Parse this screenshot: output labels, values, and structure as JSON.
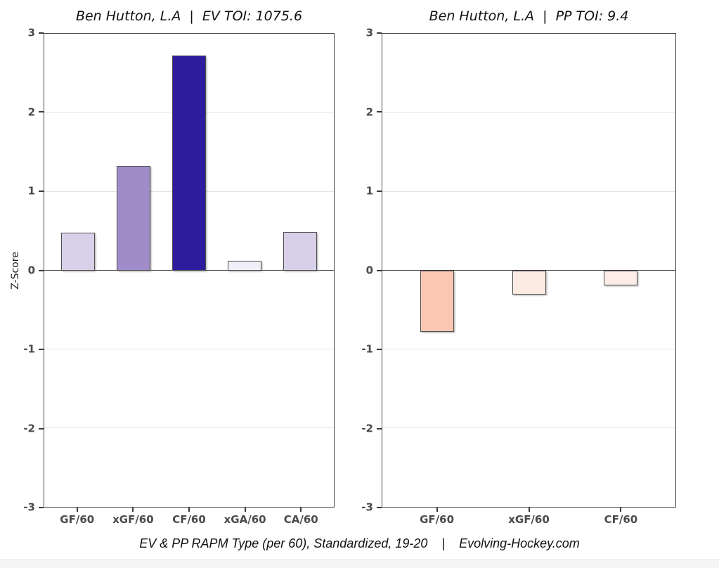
{
  "caption": {
    "text": "EV & PP RAPM Type (per 60), Standardized, 19-20    |    Evolving-Hockey.com"
  },
  "colors": {
    "plot_border": "#474747",
    "zero_line": "#3d3d3d",
    "gridline": "#e4e4e4",
    "bar_border": "#4e4e4e",
    "axis_text": "#4a4a4a",
    "title_text": "#111111",
    "background": "#ffffff"
  },
  "chart_data": [
    {
      "type": "bar",
      "title": "Ben Hutton, L.A  |  EV TOI: 1075.6",
      "categories": [
        "GF/60",
        "xGF/60",
        "CF/60",
        "xGA/60",
        "CA/60"
      ],
      "values": [
        0.48,
        1.32,
        2.72,
        0.12,
        0.49
      ],
      "bar_colors": [
        "#d9d0e9",
        "#a08cc8",
        "#2e1c9e",
        "#f2eef8",
        "#d8cfe9"
      ],
      "ylabel": "Z-Score",
      "xlabel": "",
      "ylim": [
        -3,
        3
      ],
      "yticks": [
        3,
        2,
        1,
        0,
        -1,
        -2,
        -3
      ],
      "grid": true,
      "zero_line": true,
      "legend": "none"
    },
    {
      "type": "bar",
      "title": "Ben Hutton, L.A  |  PP TOI: 9.4",
      "categories": [
        "GF/60",
        "xGF/60",
        "CF/60"
      ],
      "values": [
        -0.78,
        -0.31,
        -0.19
      ],
      "bar_colors": [
        "#fbc7b3",
        "#fcebe3",
        "#fdece7"
      ],
      "ylabel": "",
      "xlabel": "",
      "ylim": [
        -3,
        3
      ],
      "yticks": [
        3,
        2,
        1,
        0,
        -1,
        -2,
        -3
      ],
      "grid": true,
      "zero_line": true,
      "legend": "none"
    }
  ]
}
